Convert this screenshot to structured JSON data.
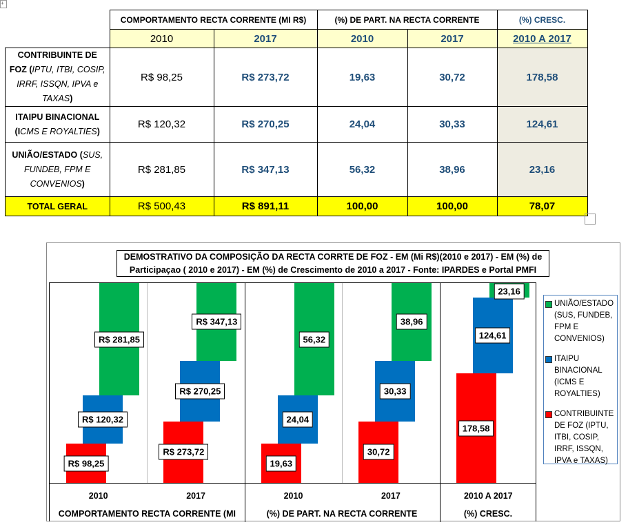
{
  "table": {
    "groups": [
      "COMPORTAMENTO RECTA CORRENTE (MI R$)",
      "(%) DE PART. NA RECTA CORRENTE",
      "(%) CRESC."
    ],
    "years": [
      "2010",
      "2017",
      "2010",
      "2017",
      "2010  A  2017"
    ],
    "rows": [
      {
        "bold": "CONTRIBUINTE DE FOZ",
        "italic": "IPTU, ITBI, COSIP, IRRF, ISSQN, IPVA e TAXAS",
        "cells": [
          "R$ 98,25",
          "R$ 273,72",
          "19,63",
          "30,72",
          "178,58"
        ]
      },
      {
        "bold": "ITAIPU BINACIONAL",
        "italic": "CMS E ROYALTIES",
        "cells": [
          "R$ 120,32",
          "R$ 270,25",
          "24,04",
          "30,33",
          "124,61"
        ]
      },
      {
        "bold": "UNIÃO/ESTADO",
        "italic": "SUS, FUNDEB, FPM E CONVENIOS",
        "cells": [
          "R$ 281,85",
          "R$ 347,13",
          "56,32",
          "38,96",
          "23,16"
        ]
      }
    ],
    "total": {
      "label": "TOTAL GERAL",
      "cells": [
        "R$ 500,43",
        "R$ 891,11",
        "100,00",
        "100,00",
        "78,07"
      ]
    }
  },
  "chart_data": {
    "type": "bar",
    "stacked": "100%",
    "title": "DEMOSTRATIVO DA COMPOSIÇÃO DA RECTA CORRTE DE FOZ - EM (Mi R$)(2010 e 2017) - EM (%) de Participaçao ( 2010 e 2017) - EM (%) de Crescimento de 2010 a 2017 - Fonte: IPARDES e Portal  PMFI",
    "categories": [
      "2010",
      "2017",
      "2010",
      "2017",
      "2010  A  2017"
    ],
    "groups": [
      "COMPORTAMENTO RECTA CORRENTE (MI",
      "(%) DE PART. NA RECTA CORRENTE",
      "(%) CRESC."
    ],
    "series": [
      {
        "name": "CONTRIBUINTE DE FOZ (IPTU, ITBI, COSIP, IRRF, ISSQN, IPVA e TAXAS)",
        "color": "#FF0000",
        "values": [
          98.25,
          273.72,
          19.63,
          30.72,
          178.58
        ],
        "labels": [
          "R$ 98,25",
          "R$ 273,72",
          "19,63",
          "30,72",
          "178,58"
        ]
      },
      {
        "name": "ITAIPU BINACIONAL (ICMS E ROYALTIES)",
        "color": "#0070C0",
        "values": [
          120.32,
          270.25,
          24.04,
          30.33,
          124.61
        ],
        "labels": [
          "R$ 120,32",
          "R$ 270,25",
          "24,04",
          "30,33",
          "124,61"
        ]
      },
      {
        "name": "UNIÃO/ESTADO (SUS, FUNDEB, FPM E CONVENIOS)",
        "color": "#00B050",
        "values": [
          281.85,
          347.13,
          56.32,
          38.96,
          23.16
        ],
        "labels": [
          "R$ 281,85",
          "R$ 347,13",
          "56,32",
          "38,96",
          "23,16"
        ]
      }
    ],
    "legend_position": "right"
  }
}
